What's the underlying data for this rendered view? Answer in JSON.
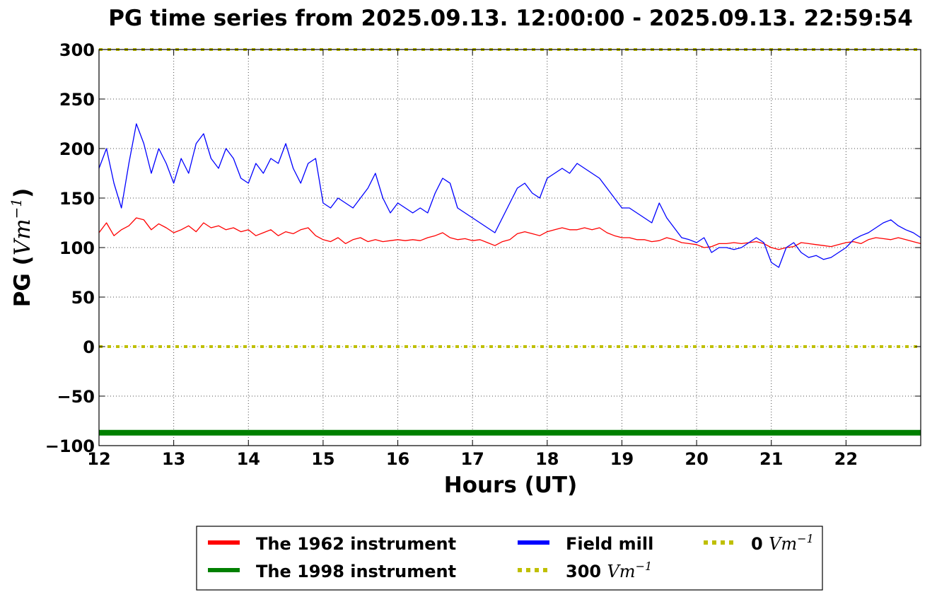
{
  "chart_data": {
    "type": "line",
    "title": "PG time series from 2025.09.13. 12:00:00 - 2025.09.13. 22:59:54",
    "xlabel": "Hours (UT)",
    "ylabel_text": "PG (",
    "ylabel_unit": "Vm",
    "ylabel_exp": "−1",
    "ylabel_close": ")",
    "xlim": [
      12,
      23
    ],
    "ylim": [
      -100,
      300
    ],
    "x_ticks": [
      12,
      13,
      14,
      15,
      16,
      17,
      18,
      19,
      20,
      21,
      22
    ],
    "x_tick_labels": [
      "12",
      "13",
      "14",
      "15",
      "16",
      "17",
      "18",
      "19",
      "20",
      "21",
      "22"
    ],
    "y_ticks": [
      -100,
      -50,
      0,
      50,
      100,
      150,
      200,
      250,
      300
    ],
    "y_tick_labels": [
      "−100",
      "−50",
      "0",
      "50",
      "100",
      "150",
      "200",
      "250",
      "300"
    ],
    "grid": true,
    "legend_placement": "bottom-center, below plot",
    "series": [
      {
        "name": "The 1962 instrument",
        "color": "#ff0000",
        "x": [
          12.0,
          12.1,
          12.2,
          12.3,
          12.4,
          12.5,
          12.6,
          12.7,
          12.8,
          12.9,
          13.0,
          13.1,
          13.2,
          13.3,
          13.4,
          13.5,
          13.6,
          13.7,
          13.8,
          13.9,
          14.0,
          14.1,
          14.2,
          14.3,
          14.4,
          14.5,
          14.6,
          14.7,
          14.8,
          14.9,
          15.0,
          15.1,
          15.2,
          15.3,
          15.4,
          15.5,
          15.6,
          15.7,
          15.8,
          15.9,
          16.0,
          16.1,
          16.2,
          16.3,
          16.4,
          16.5,
          16.6,
          16.7,
          16.8,
          16.9,
          17.0,
          17.1,
          17.2,
          17.3,
          17.4,
          17.5,
          17.6,
          17.7,
          17.8,
          17.9,
          18.0,
          18.1,
          18.2,
          18.3,
          18.4,
          18.5,
          18.6,
          18.7,
          18.8,
          18.9,
          19.0,
          19.1,
          19.2,
          19.3,
          19.4,
          19.5,
          19.6,
          19.7,
          19.8,
          19.9,
          20.0,
          20.1,
          20.2,
          20.3,
          20.4,
          20.5,
          20.6,
          20.7,
          20.8,
          20.9,
          21.0,
          21.1,
          21.2,
          21.3,
          21.4,
          21.5,
          21.6,
          21.7,
          21.8,
          21.9,
          22.0,
          22.1,
          22.2,
          22.3,
          22.4,
          22.5,
          22.6,
          22.7,
          22.8,
          22.9,
          23.0
        ],
        "y": [
          115,
          125,
          112,
          118,
          122,
          130,
          128,
          118,
          124,
          120,
          115,
          118,
          122,
          116,
          125,
          120,
          122,
          118,
          120,
          116,
          118,
          112,
          115,
          118,
          112,
          116,
          114,
          118,
          120,
          112,
          108,
          106,
          110,
          104,
          108,
          110,
          106,
          108,
          106,
          107,
          108,
          107,
          108,
          107,
          110,
          112,
          115,
          110,
          108,
          109,
          107,
          108,
          105,
          102,
          106,
          108,
          114,
          116,
          114,
          112,
          116,
          118,
          120,
          118,
          118,
          120,
          118,
          120,
          115,
          112,
          110,
          110,
          108,
          108,
          106,
          107,
          110,
          108,
          105,
          104,
          103,
          100,
          101,
          104,
          104,
          105,
          104,
          105,
          106,
          104,
          100,
          98,
          100,
          101,
          105,
          104,
          103,
          102,
          101,
          103,
          105,
          106,
          104,
          108,
          110,
          109,
          108,
          110,
          108,
          106,
          104
        ]
      },
      {
        "name": "The 1998 instrument",
        "color": "#008000",
        "x": [
          12.0,
          23.0
        ],
        "y": [
          -87,
          -87
        ]
      },
      {
        "name": "Field mill",
        "color": "#0000ff",
        "x": [
          12.0,
          12.1,
          12.2,
          12.3,
          12.4,
          12.5,
          12.6,
          12.7,
          12.8,
          12.9,
          13.0,
          13.1,
          13.2,
          13.3,
          13.4,
          13.5,
          13.6,
          13.7,
          13.8,
          13.9,
          14.0,
          14.1,
          14.2,
          14.3,
          14.4,
          14.5,
          14.6,
          14.7,
          14.8,
          14.9,
          15.0,
          15.1,
          15.2,
          15.3,
          15.4,
          15.5,
          15.6,
          15.7,
          15.8,
          15.9,
          16.0,
          16.1,
          16.2,
          16.3,
          16.4,
          16.5,
          16.6,
          16.7,
          16.8,
          16.9,
          17.0,
          17.1,
          17.2,
          17.3,
          17.4,
          17.5,
          17.6,
          17.7,
          17.8,
          17.9,
          18.0,
          18.1,
          18.2,
          18.3,
          18.4,
          18.5,
          18.6,
          18.7,
          18.8,
          18.9,
          19.0,
          19.1,
          19.2,
          19.3,
          19.4,
          19.5,
          19.6,
          19.7,
          19.8,
          19.9,
          20.0,
          20.1,
          20.2,
          20.3,
          20.4,
          20.5,
          20.6,
          20.7,
          20.8,
          20.9,
          21.0,
          21.1,
          21.2,
          21.3,
          21.4,
          21.5,
          21.6,
          21.7,
          21.8,
          21.9,
          22.0,
          22.1,
          22.2,
          22.3,
          22.4,
          22.5,
          22.6,
          22.7,
          22.8,
          22.9,
          23.0
        ],
        "y": [
          180,
          200,
          165,
          140,
          185,
          225,
          205,
          175,
          200,
          185,
          165,
          190,
          175,
          205,
          215,
          190,
          180,
          200,
          190,
          170,
          165,
          185,
          175,
          190,
          185,
          205,
          180,
          165,
          185,
          190,
          145,
          140,
          150,
          145,
          140,
          150,
          160,
          175,
          150,
          135,
          145,
          140,
          135,
          140,
          135,
          155,
          170,
          165,
          140,
          135,
          130,
          125,
          120,
          115,
          130,
          145,
          160,
          165,
          155,
          150,
          170,
          175,
          180,
          175,
          185,
          180,
          175,
          170,
          160,
          150,
          140,
          140,
          135,
          130,
          125,
          145,
          130,
          120,
          110,
          108,
          105,
          110,
          95,
          100,
          100,
          98,
          100,
          105,
          110,
          105,
          85,
          80,
          100,
          105,
          95,
          90,
          92,
          88,
          90,
          95,
          100,
          108,
          112,
          115,
          120,
          125,
          128,
          122,
          118,
          115,
          110
        ]
      },
      {
        "name": "300 Vm−1",
        "color": "#bfbf00",
        "x": [
          12.0,
          23.0
        ],
        "y": [
          300,
          300
        ]
      },
      {
        "name": "0 Vm−1",
        "color": "#bfbf00",
        "x": [
          12.0,
          23.0
        ],
        "y": [
          0,
          0
        ]
      }
    ],
    "legend": [
      {
        "number": "The 1962 instrument",
        "color": "#ff0000",
        "style": "solid"
      },
      {
        "number": "The 1998 instrument",
        "color": "#008000",
        "style": "solid"
      },
      {
        "number": "Field mill",
        "color": "#0000ff",
        "style": "solid"
      },
      {
        "number": "300",
        "unit": "Vm",
        "exp": "−1",
        "color": "#bfbf00",
        "style": "dotted"
      },
      {
        "number": "0",
        "unit": "Vm",
        "exp": "−1",
        "color": "#bfbf00",
        "style": "dotted"
      }
    ]
  }
}
